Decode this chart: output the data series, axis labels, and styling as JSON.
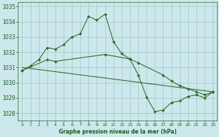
{
  "line1_x": [
    0,
    1,
    2,
    3,
    4,
    5,
    6,
    7,
    8,
    9,
    10,
    11,
    12,
    13,
    14,
    15,
    16,
    17,
    18,
    19,
    20,
    21,
    22,
    23
  ],
  "line1_y": [
    1030.8,
    1031.1,
    1031.5,
    1032.3,
    1032.2,
    1032.5,
    1033.0,
    1033.2,
    1034.35,
    1034.1,
    1034.5,
    1032.7,
    1031.9,
    1031.55,
    1030.5,
    1029.05,
    1028.1,
    1028.2,
    1028.7,
    1028.8,
    1029.1,
    1029.2,
    1029.0,
    1029.4
  ],
  "line2_x": [
    0,
    3,
    4,
    10,
    13,
    14,
    17,
    18,
    19,
    20,
    21,
    22,
    23
  ],
  "line2_y": [
    1030.8,
    1031.5,
    1031.4,
    1031.85,
    1031.55,
    1031.3,
    1030.5,
    1030.1,
    1029.8,
    1029.6,
    1029.4,
    1029.2,
    1029.4
  ],
  "line3_x": [
    0,
    23
  ],
  "line3_y": [
    1031.0,
    1029.4
  ],
  "line_color": "#2d6a2d",
  "bg_color": "#cce8ec",
  "grid_color": "#a8c8cc",
  "xlabel": "Graphe pression niveau de la mer (hPa)",
  "xlabel_color": "#1a5c1a",
  "tick_color": "#1a5c1a",
  "ylim": [
    1027.5,
    1035.3
  ],
  "xlim": [
    -0.5,
    23.5
  ],
  "yticks": [
    1028,
    1029,
    1030,
    1031,
    1032,
    1033,
    1034,
    1035
  ],
  "xticks": [
    0,
    1,
    2,
    3,
    4,
    5,
    6,
    7,
    8,
    9,
    10,
    11,
    12,
    13,
    14,
    15,
    16,
    17,
    18,
    19,
    20,
    21,
    22,
    23
  ]
}
